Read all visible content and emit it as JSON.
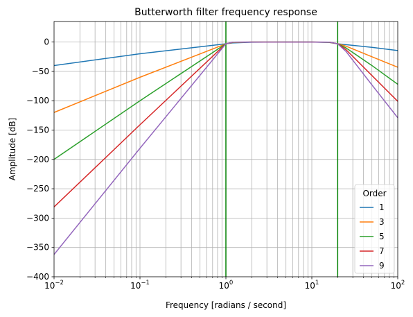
{
  "chart_data": {
    "type": "line",
    "title": "Butterworth filter frequency response",
    "xlabel": "Frequency [radians / second]",
    "ylabel": "Amplitude [dB]",
    "x_scale": "log",
    "xlim": [
      0.01,
      100
    ],
    "ylim": [
      -400,
      35
    ],
    "grid": true,
    "x_ticks": [
      {
        "value": 0.01,
        "base": "10",
        "exp": "−2"
      },
      {
        "value": 0.1,
        "base": "10",
        "exp": "−1"
      },
      {
        "value": 1,
        "base": "10",
        "exp": "0"
      },
      {
        "value": 10,
        "base": "10",
        "exp": "1"
      },
      {
        "value": 100,
        "base": "10",
        "exp": "2"
      }
    ],
    "y_ticks": [
      0,
      -50,
      -100,
      -150,
      -200,
      -250,
      -300,
      -350,
      -400
    ],
    "y_tick_labels": [
      "0",
      "−50",
      "−100",
      "−150",
      "−200",
      "−250",
      "−300",
      "−350",
      "−400"
    ],
    "cutoff_lines": {
      "x": [
        1,
        20
      ],
      "color": "#008000"
    },
    "legend": {
      "title": "Order",
      "position": "lower right"
    },
    "series": [
      {
        "name": "1",
        "color": "#1f77b4",
        "x": [
          0.01,
          0.1,
          1,
          1.2,
          2,
          5,
          10,
          16,
          20,
          25,
          50,
          100
        ],
        "y": [
          -40,
          -20,
          -3,
          -1.5,
          -0.3,
          0,
          0,
          -0.7,
          -3,
          -4.5,
          -9,
          -14.5
        ]
      },
      {
        "name": "3",
        "color": "#ff7f0e",
        "x": [
          0.01,
          0.1,
          1,
          1.2,
          2,
          5,
          10,
          16,
          20,
          25,
          50,
          100
        ],
        "y": [
          -120,
          -60,
          -3,
          -0.8,
          0,
          0,
          0,
          -0.5,
          -3,
          -7,
          -25,
          -43
        ]
      },
      {
        "name": "5",
        "color": "#2ca02c",
        "x": [
          0.01,
          0.1,
          1,
          1.2,
          2,
          5,
          10,
          16,
          20,
          25,
          50,
          100
        ],
        "y": [
          -200,
          -100,
          -3,
          -0.4,
          0,
          0,
          0,
          -0.3,
          -3,
          -10,
          -40,
          -72
        ]
      },
      {
        "name": "7",
        "color": "#d62728",
        "x": [
          0.01,
          0.1,
          1,
          1.2,
          2,
          5,
          10,
          16,
          20,
          25,
          50,
          100
        ],
        "y": [
          -281,
          -141,
          -3,
          -0.2,
          0,
          0,
          0,
          -0.2,
          -3,
          -13,
          -57,
          -101
        ]
      },
      {
        "name": "9",
        "color": "#9467bd",
        "x": [
          0.01,
          0.1,
          1,
          1.2,
          2,
          5,
          10,
          16,
          20,
          25,
          50,
          100
        ],
        "y": [
          -362,
          -181,
          -3,
          -0.1,
          0,
          0,
          0,
          -0.1,
          -3,
          -16,
          -73,
          -129
        ]
      }
    ]
  }
}
